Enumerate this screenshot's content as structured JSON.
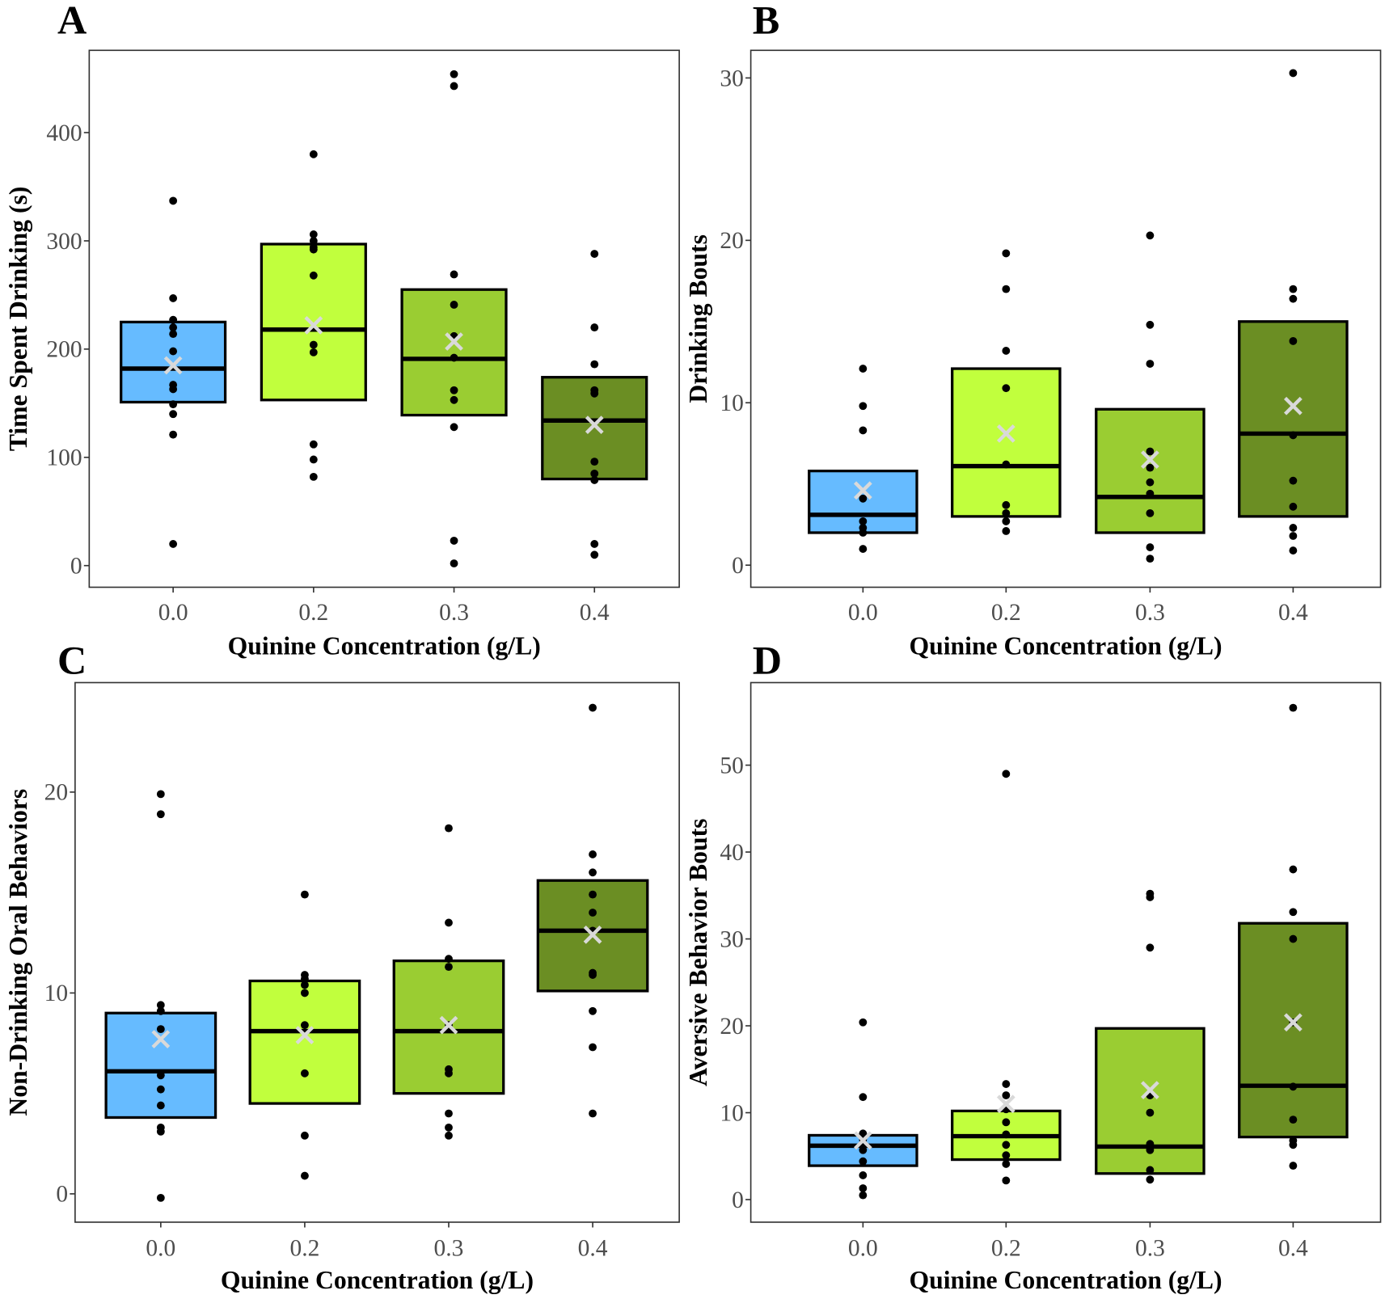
{
  "chart_data": [
    {
      "type": "box",
      "panel_label": "A",
      "title": "",
      "xlabel": "Quinine Concentration (g/L)",
      "ylabel": "Time Spent Drinking (s)",
      "categories": [
        "0.0",
        "0.2",
        "0.3",
        "0.4"
      ],
      "yticks": [
        0,
        100,
        200,
        300,
        400
      ],
      "ylim": [
        -20,
        476
      ],
      "grid": false,
      "boxes": [
        {
          "q1": 151,
          "median": 182,
          "q3": 225,
          "mean": 185,
          "points": [
            337,
            247,
            227,
            220,
            214,
            198,
            167,
            163,
            149,
            140,
            121,
            20
          ]
        },
        {
          "q1": 153,
          "median": 218,
          "q3": 297,
          "mean": 222,
          "points": [
            380,
            306,
            300,
            294,
            292,
            268,
            204,
            197,
            112,
            98,
            82
          ]
        },
        {
          "q1": 139,
          "median": 191,
          "q3": 255,
          "mean": 207,
          "points": [
            454,
            443,
            269,
            241,
            212,
            192,
            162,
            153,
            128,
            23,
            2
          ]
        },
        {
          "q1": 80,
          "median": 134,
          "q3": 174,
          "mean": 130,
          "points": [
            288,
            220,
            186,
            162,
            159,
            96,
            85,
            79,
            20,
            10
          ]
        }
      ]
    },
    {
      "type": "box",
      "panel_label": "B",
      "title": "",
      "xlabel": "Quinine Concentration (g/L)",
      "ylabel": "Drinking Bouts",
      "categories": [
        "0.0",
        "0.2",
        "0.3",
        "0.4"
      ],
      "yticks": [
        0,
        10,
        20,
        30
      ],
      "ylim": [
        -1.36,
        31.7
      ],
      "grid": false,
      "boxes": [
        {
          "q1": 2.0,
          "median": 3.1,
          "q3": 5.8,
          "mean": 4.6,
          "points": [
            12.1,
            9.8,
            8.3,
            4.1,
            2.7,
            2.3,
            2.0,
            1.0
          ]
        },
        {
          "q1": 3.0,
          "median": 6.1,
          "q3": 12.1,
          "mean": 8.1,
          "points": [
            19.2,
            17.0,
            13.2,
            10.9,
            6.2,
            3.7,
            3.2,
            2.7,
            2.1
          ]
        },
        {
          "q1": 2.0,
          "median": 4.2,
          "q3": 9.6,
          "mean": 6.5,
          "points": [
            20.3,
            14.8,
            12.4,
            7.0,
            6.0,
            5.1,
            4.4,
            3.2,
            1.1,
            0.4
          ]
        },
        {
          "q1": 3.0,
          "median": 8.1,
          "q3": 15.0,
          "mean": 9.8,
          "points": [
            30.3,
            17.0,
            16.4,
            13.8,
            8.0,
            5.2,
            3.6,
            2.3,
            1.8,
            0.9
          ]
        }
      ]
    },
    {
      "type": "box",
      "panel_label": "C",
      "title": "",
      "xlabel": "Quinine Concentration (g/L)",
      "ylabel": "Non-Drinking Oral Behaviors",
      "categories": [
        "0.0",
        "0.2",
        "0.3",
        "0.4"
      ],
      "yticks": [
        0,
        10,
        20
      ],
      "ylim": [
        -1.41,
        25.45
      ],
      "grid": false,
      "boxes": [
        {
          "q1": 3.8,
          "median": 6.1,
          "q3": 9.0,
          "mean": 7.7,
          "points": [
            19.9,
            18.9,
            9.4,
            9.1,
            8.2,
            5.9,
            5.2,
            4.4,
            3.3,
            3.1,
            -0.2
          ]
        },
        {
          "q1": 4.5,
          "median": 8.1,
          "q3": 10.6,
          "mean": 7.9,
          "points": [
            14.9,
            10.9,
            10.7,
            10.4,
            10.0,
            8.4,
            6.0,
            2.9,
            0.9
          ]
        },
        {
          "q1": 5.0,
          "median": 8.1,
          "q3": 11.6,
          "mean": 8.4,
          "points": [
            18.2,
            13.5,
            11.7,
            11.3,
            8.4,
            6.2,
            6.0,
            4.0,
            3.3,
            2.9
          ]
        },
        {
          "q1": 10.1,
          "median": 13.1,
          "q3": 15.6,
          "mean": 12.9,
          "points": [
            24.2,
            16.9,
            16.0,
            14.9,
            14.0,
            13.1,
            11.0,
            10.9,
            9.1,
            7.3,
            4.0
          ]
        }
      ]
    },
    {
      "type": "box",
      "panel_label": "D",
      "title": "",
      "xlabel": "Quinine Concentration (g/L)",
      "ylabel": "Aversive Behavior Bouts",
      "categories": [
        "0.0",
        "0.2",
        "0.3",
        "0.4"
      ],
      "yticks": [
        0,
        10,
        20,
        30,
        40,
        50
      ],
      "ylim": [
        -2.6,
        59.5
      ],
      "grid": false,
      "boxes": [
        {
          "q1": 3.9,
          "median": 6.2,
          "q3": 7.4,
          "mean": 6.8,
          "points": [
            20.4,
            11.8,
            7.6,
            6.9,
            5.7,
            4.4,
            2.8,
            1.3,
            0.5
          ]
        },
        {
          "q1": 4.6,
          "median": 7.3,
          "q3": 10.2,
          "mean": 11.0,
          "points": [
            49.0,
            13.3,
            12.0,
            10.4,
            8.9,
            7.5,
            6.3,
            5.1,
            4.1,
            2.2
          ]
        },
        {
          "q1": 3.0,
          "median": 6.1,
          "q3": 19.7,
          "mean": 12.6,
          "points": [
            35.2,
            34.8,
            29.0,
            12.0,
            10.0,
            6.4,
            5.7,
            3.4,
            2.3
          ]
        },
        {
          "q1": 7.2,
          "median": 13.1,
          "q3": 31.8,
          "mean": 20.4,
          "points": [
            56.6,
            38.0,
            33.1,
            30.0,
            20.4,
            13.0,
            9.2,
            6.8,
            6.3,
            3.9
          ]
        }
      ]
    }
  ],
  "colors": {
    "group_fills": [
      "#66bbff",
      "#c1ff3d",
      "#9acd32",
      "#6b8e23"
    ],
    "mean_marker": "#d9d9d9",
    "points": "#000000"
  }
}
